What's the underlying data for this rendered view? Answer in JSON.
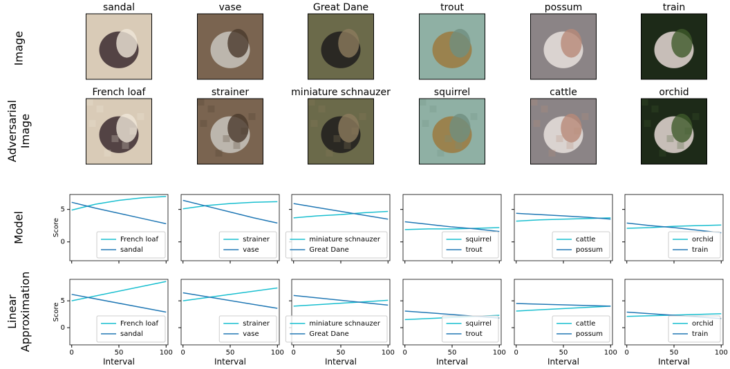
{
  "row_labels": [
    [
      "Image"
    ],
    [
      "Adversarial",
      "Image"
    ],
    [
      "Model"
    ],
    [
      "Linear",
      "Approximation"
    ]
  ],
  "images": [
    {
      "label": "sandal",
      "adversarial_label": "French loaf"
    },
    {
      "label": "vase",
      "adversarial_label": "strainer"
    },
    {
      "label": "Great Dane",
      "adversarial_label": "miniature schnauzer"
    },
    {
      "label": "trout",
      "adversarial_label": "squirrel"
    },
    {
      "label": "possum",
      "adversarial_label": "cattle"
    },
    {
      "label": "train",
      "adversarial_label": "orchid"
    }
  ],
  "chart_data": [
    {
      "type": "line",
      "ylabel": "Score",
      "x": [
        0,
        25,
        50,
        75,
        100
      ],
      "xlim": [
        -2,
        102
      ],
      "ylim": [
        -2.9,
        7.3
      ],
      "xticks": [
        0,
        50,
        100
      ],
      "yticks": [
        0,
        5
      ],
      "show_xtick_labels": false,
      "show_ytick_labels": true,
      "legend": "lower right",
      "series": [
        {
          "name": "French loaf",
          "color": "#17becf",
          "values": [
            4.9,
            5.8,
            6.4,
            6.8,
            7.0
          ]
        },
        {
          "name": "sandal",
          "color": "#1f77b4",
          "values": [
            6.1,
            5.2,
            4.4,
            3.6,
            2.8
          ]
        }
      ]
    },
    {
      "type": "line",
      "x": [
        0,
        25,
        50,
        75,
        100
      ],
      "xlim": [
        -2,
        102
      ],
      "ylim": [
        -2.9,
        7.3
      ],
      "xticks": [
        0,
        50,
        100
      ],
      "yticks": [
        0,
        5
      ],
      "show_xtick_labels": false,
      "show_ytick_labels": false,
      "legend": "lower right",
      "series": [
        {
          "name": "strainer",
          "color": "#17becf",
          "values": [
            5.1,
            5.6,
            5.9,
            6.1,
            6.2
          ]
        },
        {
          "name": "vase",
          "color": "#1f77b4",
          "values": [
            6.4,
            5.5,
            4.6,
            3.7,
            2.9
          ]
        }
      ]
    },
    {
      "type": "line",
      "x": [
        0,
        25,
        50,
        75,
        100
      ],
      "xlim": [
        -2,
        102
      ],
      "ylim": [
        -2.9,
        7.3
      ],
      "xticks": [
        0,
        50,
        100
      ],
      "yticks": [
        0,
        5
      ],
      "show_xtick_labels": false,
      "show_ytick_labels": false,
      "legend": "lower right",
      "series": [
        {
          "name": "miniature schnauzer",
          "color": "#17becf",
          "values": [
            3.7,
            4.0,
            4.2,
            4.5,
            4.7
          ]
        },
        {
          "name": "Great Dane",
          "color": "#1f77b4",
          "values": [
            5.9,
            5.3,
            4.7,
            4.1,
            3.5
          ]
        }
      ]
    },
    {
      "type": "line",
      "x": [
        0,
        25,
        50,
        75,
        100
      ],
      "xlim": [
        -2,
        102
      ],
      "ylim": [
        -2.9,
        7.3
      ],
      "xticks": [
        0,
        50,
        100
      ],
      "yticks": [
        0,
        5
      ],
      "show_xtick_labels": false,
      "show_ytick_labels": false,
      "legend": "lower right",
      "series": [
        {
          "name": "squirrel",
          "color": "#17becf",
          "values": [
            1.9,
            2.0,
            2.0,
            2.1,
            2.2
          ]
        },
        {
          "name": "trout",
          "color": "#1f77b4",
          "values": [
            3.1,
            2.7,
            2.3,
            2.0,
            1.6
          ]
        }
      ]
    },
    {
      "type": "line",
      "x": [
        0,
        25,
        50,
        75,
        100
      ],
      "xlim": [
        -2,
        102
      ],
      "ylim": [
        -2.9,
        7.3
      ],
      "xticks": [
        0,
        50,
        100
      ],
      "yticks": [
        0,
        5
      ],
      "show_xtick_labels": false,
      "show_ytick_labels": false,
      "legend": "lower right",
      "series": [
        {
          "name": "cattle",
          "color": "#17becf",
          "values": [
            3.2,
            3.4,
            3.5,
            3.6,
            3.7
          ]
        },
        {
          "name": "possum",
          "color": "#1f77b4",
          "values": [
            4.4,
            4.2,
            4.0,
            3.8,
            3.5
          ]
        }
      ]
    },
    {
      "type": "line",
      "x": [
        0,
        25,
        50,
        75,
        100
      ],
      "xlim": [
        -2,
        102
      ],
      "ylim": [
        -2.9,
        7.3
      ],
      "xticks": [
        0,
        50,
        100
      ],
      "yticks": [
        0,
        5
      ],
      "show_xtick_labels": false,
      "show_ytick_labels": false,
      "legend": "lower right",
      "series": [
        {
          "name": "orchid",
          "color": "#17becf",
          "values": [
            2.1,
            2.2,
            2.4,
            2.5,
            2.6
          ]
        },
        {
          "name": "train",
          "color": "#1f77b4",
          "values": [
            2.9,
            2.5,
            2.2,
            1.8,
            1.4
          ]
        }
      ]
    },
    {
      "type": "line",
      "ylabel": "Score",
      "xlabel": "Interval",
      "x": [
        0,
        100
      ],
      "xlim": [
        -2,
        102
      ],
      "ylim": [
        -3.2,
        9.0
      ],
      "xticks": [
        0,
        50,
        100
      ],
      "yticks": [
        0,
        5
      ],
      "show_xtick_labels": true,
      "show_ytick_labels": true,
      "legend": "lower right",
      "series": [
        {
          "name": "French loaf",
          "color": "#17becf",
          "values": [
            5.0,
            8.6
          ]
        },
        {
          "name": "sandal",
          "color": "#1f77b4",
          "values": [
            6.2,
            2.9
          ]
        }
      ]
    },
    {
      "type": "line",
      "xlabel": "Interval",
      "x": [
        0,
        100
      ],
      "xlim": [
        -2,
        102
      ],
      "ylim": [
        -3.2,
        9.0
      ],
      "xticks": [
        0,
        50,
        100
      ],
      "yticks": [
        0,
        5
      ],
      "show_xtick_labels": true,
      "show_ytick_labels": false,
      "legend": "lower right",
      "series": [
        {
          "name": "strainer",
          "color": "#17becf",
          "values": [
            5.0,
            7.4
          ]
        },
        {
          "name": "vase",
          "color": "#1f77b4",
          "values": [
            6.5,
            3.6
          ]
        }
      ]
    },
    {
      "type": "line",
      "xlabel": "Interval",
      "x": [
        0,
        100
      ],
      "xlim": [
        -2,
        102
      ],
      "ylim": [
        -3.2,
        9.0
      ],
      "xticks": [
        0,
        50,
        100
      ],
      "yticks": [
        0,
        5
      ],
      "show_xtick_labels": true,
      "show_ytick_labels": false,
      "legend": "lower right",
      "series": [
        {
          "name": "miniature schnauzer",
          "color": "#17becf",
          "values": [
            4.0,
            5.1
          ]
        },
        {
          "name": "Great Dane",
          "color": "#1f77b4",
          "values": [
            6.0,
            4.2
          ]
        }
      ]
    },
    {
      "type": "line",
      "xlabel": "Interval",
      "x": [
        0,
        100
      ],
      "xlim": [
        -2,
        102
      ],
      "ylim": [
        -3.2,
        9.0
      ],
      "xticks": [
        0,
        50,
        100
      ],
      "yticks": [
        0,
        5
      ],
      "show_xtick_labels": true,
      "show_ytick_labels": false,
      "legend": "lower right",
      "series": [
        {
          "name": "squirrel",
          "color": "#17becf",
          "values": [
            1.5,
            2.3
          ]
        },
        {
          "name": "trout",
          "color": "#1f77b4",
          "values": [
            3.1,
            1.8
          ]
        }
      ]
    },
    {
      "type": "line",
      "xlabel": "Interval",
      "x": [
        0,
        100
      ],
      "xlim": [
        -2,
        102
      ],
      "ylim": [
        -3.2,
        9.0
      ],
      "xticks": [
        0,
        50,
        100
      ],
      "yticks": [
        0,
        5
      ],
      "show_xtick_labels": true,
      "show_ytick_labels": false,
      "legend": "lower right",
      "series": [
        {
          "name": "cattle",
          "color": "#17becf",
          "values": [
            3.1,
            4.0
          ]
        },
        {
          "name": "possum",
          "color": "#1f77b4",
          "values": [
            4.5,
            4.0
          ]
        }
      ]
    },
    {
      "type": "line",
      "xlabel": "Interval",
      "x": [
        0,
        100
      ],
      "xlim": [
        -2,
        102
      ],
      "ylim": [
        -3.2,
        9.0
      ],
      "xticks": [
        0,
        50,
        100
      ],
      "yticks": [
        0,
        5
      ],
      "show_xtick_labels": true,
      "show_ytick_labels": false,
      "legend": "lower right",
      "series": [
        {
          "name": "orchid",
          "color": "#17becf",
          "values": [
            2.1,
            2.6
          ]
        },
        {
          "name": "train",
          "color": "#1f77b4",
          "values": [
            2.9,
            1.7
          ]
        }
      ]
    }
  ]
}
